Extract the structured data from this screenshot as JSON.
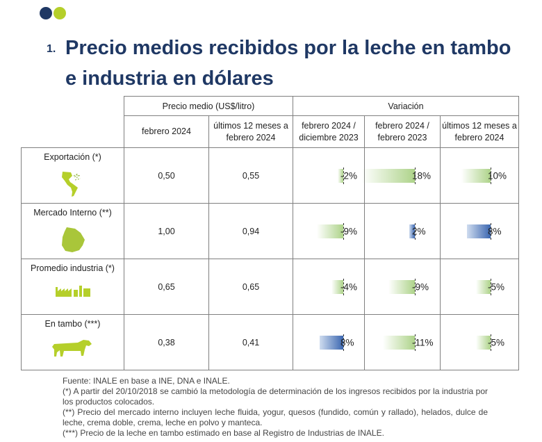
{
  "colors": {
    "dot_dark": "#1f3864",
    "dot_light": "#b5cf2a",
    "title": "#1f3864",
    "value": "#1f5aa6",
    "bar_green": "#92c462",
    "bar_blue": "#3a66b0"
  },
  "title": {
    "number": "1.",
    "text": "Precio medios recibidos por la leche en tambo e industria en dólares"
  },
  "table": {
    "group_price": "Precio medio (US$/litro)",
    "group_variation": "Variación",
    "col_feb2024": "febrero 2024",
    "col_last12": "últimos 12 meses a febrero 2024",
    "col_var_feb_dec": "febrero 2024 / diciembre 2023",
    "col_var_feb_feb": "febrero 2024 / febrero 2023",
    "col_var_last12": "últimos 12 meses a febrero 2024",
    "rows": [
      {
        "label": "Exportación (*)",
        "icon": "americas-map-icon",
        "feb2024": "0,50",
        "last12": "0,55",
        "variations": [
          {
            "text": "-2%",
            "value": -2,
            "color": "green"
          },
          {
            "text": "18%",
            "value": 18,
            "color": "green"
          },
          {
            "text": "10%",
            "value": 10,
            "color": "green"
          }
        ]
      },
      {
        "label": "Mercado Interno (**)",
        "icon": "uruguay-map-icon",
        "feb2024": "1,00",
        "last12": "0,94",
        "variations": [
          {
            "text": "-9%",
            "value": -9,
            "color": "green"
          },
          {
            "text": "2%",
            "value": 2,
            "color": "blue"
          },
          {
            "text": "8%",
            "value": 8,
            "color": "blue"
          }
        ]
      },
      {
        "label": "Promedio industria (*)",
        "icon": "factory-icon",
        "feb2024": "0,65",
        "last12": "0,65",
        "variations": [
          {
            "text": "-4%",
            "value": -4,
            "color": "green"
          },
          {
            "text": "-9%",
            "value": -9,
            "color": "green"
          },
          {
            "text": "-5%",
            "value": -5,
            "color": "green"
          }
        ]
      },
      {
        "label": "En tambo (***)",
        "icon": "cow-icon",
        "feb2024": "0,38",
        "last12": "0,41",
        "variations": [
          {
            "text": "8%",
            "value": 8,
            "color": "blue"
          },
          {
            "text": "-11%",
            "value": -11,
            "color": "green"
          },
          {
            "text": "-5%",
            "value": -5,
            "color": "green"
          }
        ]
      }
    ]
  },
  "notes": {
    "source": "Fuente: INALE en base a INE, DNA e INALE.",
    "n1": "(*) A partir del 20/10/2018 se cambió la metodología de determinación de los ingresos recibidos por la industria por los productos colocados.",
    "n2": "(**) Precio del mercado interno incluyen leche fluida, yogur, quesos (fundido, común y rallado), helados, dulce de leche, crema doble, crema, leche en polvo y manteca.",
    "n3": "(***) Precio de la leche en tambo estimado en base al Registro de Industrias de INALE."
  }
}
